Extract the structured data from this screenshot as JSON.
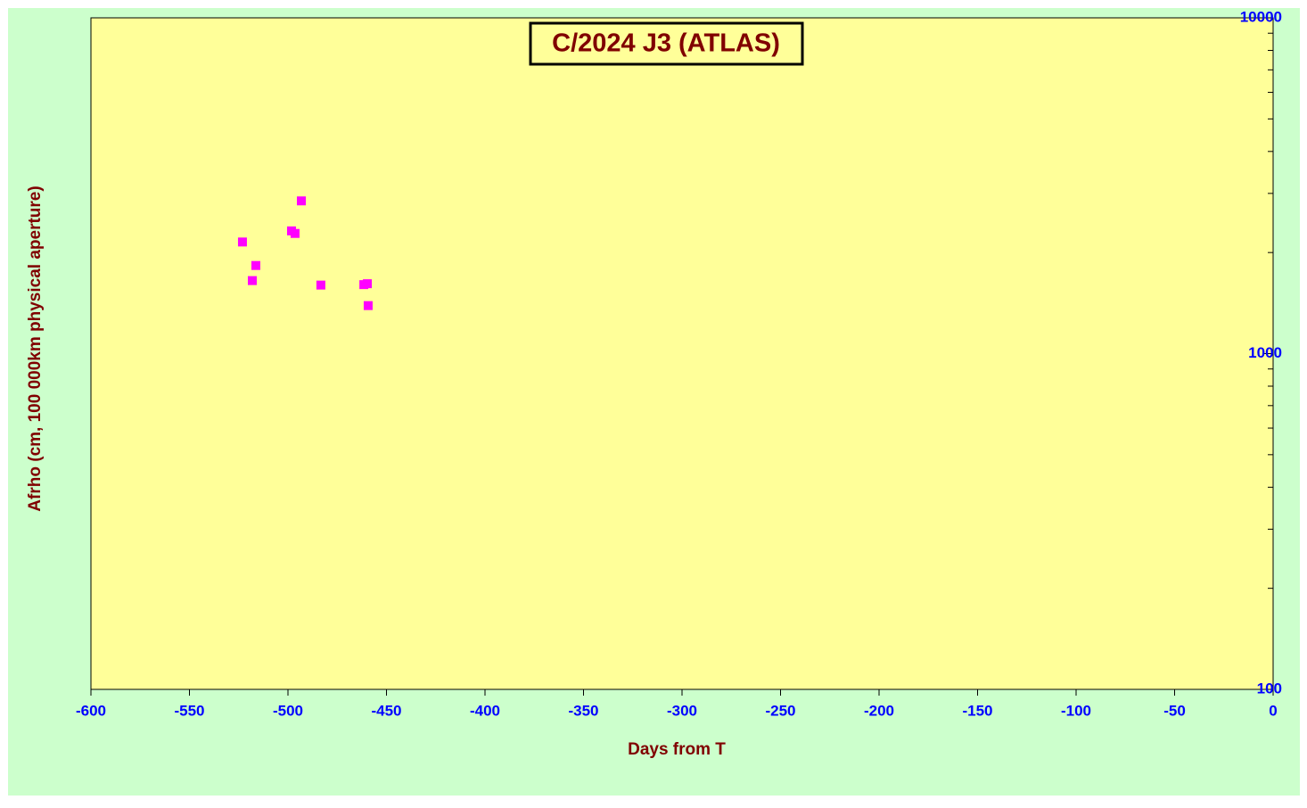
{
  "chart_data": {
    "type": "scatter",
    "title": "C/2024 J3 (ATLAS)",
    "x_label": "Days from T",
    "y_label": "Afrho (cm, 100 000km physical aperture)",
    "x": [
      -523.1,
      -516.3,
      -518.1,
      -493.2,
      -498.2,
      -496.4,
      -483.3,
      -461.5,
      -459.7,
      -459.3
    ],
    "series": [
      {
        "color": "#ff00ff",
        "values": [
          2150,
          1830,
          1650,
          2850,
          2320,
          2280,
          1600,
          1605,
          1615,
          1390
        ]
      }
    ],
    "xlim": [
      -600,
      0
    ],
    "xticks": [
      -600,
      -550,
      -500,
      -450,
      -400,
      -350,
      -300,
      -250,
      -200,
      -150,
      -100,
      -50,
      0
    ],
    "ylim": [
      100,
      10000
    ],
    "yticks": [
      100,
      1000,
      10000
    ],
    "ylog": true,
    "yaxis_side": "right",
    "yminorticks": [
      200,
      300,
      400,
      500,
      600,
      700,
      800,
      900,
      2000,
      3000,
      4000,
      5000,
      6000,
      7000,
      8000,
      9000
    ]
  }
}
